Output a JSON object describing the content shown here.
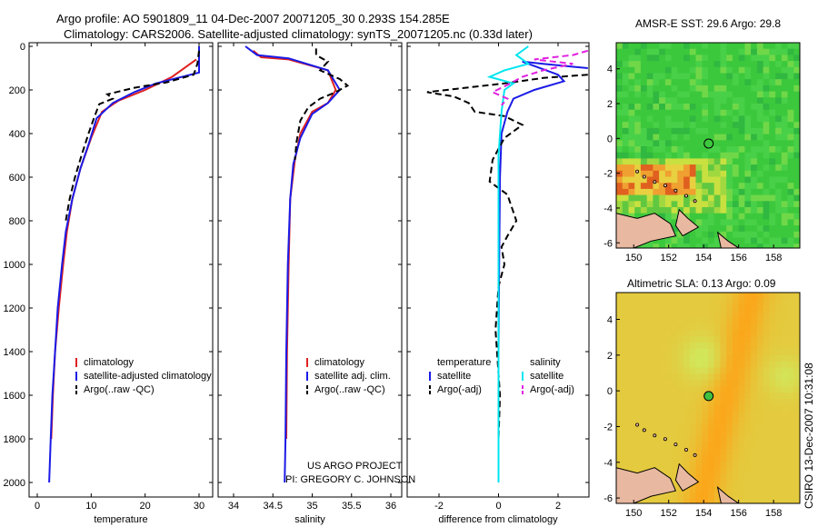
{
  "header": {
    "line1": "Argo profile: AO 5901809_11 04-Dec-2007 20071205_30 0.293S 154.285E",
    "line2": "Climatology: CARS2006. Satellite-adjusted climatology: synTS_20071205.nc (0.33d later)"
  },
  "colors": {
    "red": "#e02020",
    "blue": "#1a1ae6",
    "black": "#000000",
    "cyan": "#00e5f0",
    "magenta": "#e020e0",
    "land": "#e8b8a0",
    "grid_edge": "#000000"
  },
  "chart_data": [
    {
      "id": "temperature",
      "type": "line",
      "xlabel": "temperature",
      "ylabel": "",
      "xlim": [
        -2,
        31
      ],
      "ylim": [
        2050,
        0
      ],
      "xticks": [
        "0",
        "10",
        "20",
        "30"
      ],
      "xtick_values": [
        0,
        10,
        20,
        30
      ],
      "yticks": [
        "0",
        "200",
        "400",
        "600",
        "800",
        "1000",
        "1200",
        "1400",
        "1600",
        "1800",
        "2000"
      ],
      "ytick_values": [
        0,
        200,
        400,
        600,
        800,
        1000,
        1200,
        1400,
        1600,
        1800,
        2000
      ],
      "legend": [
        {
          "label": "climatology",
          "color": "red",
          "dash": false
        },
        {
          "label": "satellite-adjusted climatology",
          "color": "blue",
          "dash": false
        },
        {
          "label": "Argo(..raw -QC)",
          "color": "black",
          "dash": true
        }
      ],
      "series": [
        {
          "name": "climatology",
          "color": "red",
          "dash": false,
          "points": [
            [
              29.5,
              60
            ],
            [
              25,
              140
            ],
            [
              20,
              200
            ],
            [
              15,
              250
            ],
            [
              12,
              300
            ],
            [
              10,
              420
            ],
            [
              8,
              560
            ],
            [
              6.5,
              700
            ],
            [
              5.5,
              850
            ],
            [
              4.8,
              1000
            ],
            [
              4,
              1200
            ],
            [
              3.3,
              1400
            ],
            [
              2.9,
              1600
            ],
            [
              2.6,
              1800
            ]
          ]
        },
        {
          "name": "satellite-adjusted climatology",
          "color": "blue",
          "dash": false,
          "points": [
            [
              30,
              0
            ],
            [
              30,
              120
            ],
            [
              22,
              170
            ],
            [
              18,
              210
            ],
            [
              14,
              260
            ],
            [
              11,
              330
            ],
            [
              9.5,
              450
            ],
            [
              8,
              560
            ],
            [
              6.5,
              700
            ],
            [
              5.3,
              850
            ],
            [
              4.6,
              1000
            ],
            [
              3.8,
              1200
            ],
            [
              3.3,
              1400
            ],
            [
              2.8,
              1600
            ],
            [
              2.5,
              1800
            ],
            [
              2.2,
              2000
            ]
          ]
        },
        {
          "name": "Argo(..raw -QC)",
          "color": "black",
          "dash": true,
          "points": [
            [
              30,
              20
            ],
            [
              29.7,
              80
            ],
            [
              29,
              130
            ],
            [
              24,
              165
            ],
            [
              18,
              190
            ],
            [
              13,
              220
            ],
            [
              14,
              240
            ],
            [
              11.5,
              265
            ],
            [
              10.5,
              330
            ],
            [
              9.5,
              400
            ],
            [
              8.2,
              500
            ],
            [
              7,
              600
            ],
            [
              6,
              700
            ],
            [
              5.3,
              800
            ]
          ]
        }
      ]
    },
    {
      "id": "salinity",
      "type": "line",
      "xlabel": "salinity",
      "xlim": [
        33.85,
        36.1
      ],
      "ylim": [
        2050,
        0
      ],
      "xticks": [
        "34",
        "34.5",
        "35",
        "35.5",
        "36"
      ],
      "xtick_values": [
        34,
        34.5,
        35,
        35.5,
        36
      ],
      "legend": [
        {
          "label": "climatology",
          "color": "red",
          "dash": false
        },
        {
          "label": "satellite adj. clim.",
          "color": "blue",
          "dash": false
        },
        {
          "label": "Argo(..raw -QC)",
          "color": "black",
          "dash": true
        }
      ],
      "series": [
        {
          "name": "climatology",
          "color": "red",
          "dash": false,
          "points": [
            [
              34.25,
              20
            ],
            [
              34.35,
              50
            ],
            [
              34.7,
              60
            ],
            [
              35.2,
              110
            ],
            [
              35.3,
              200
            ],
            [
              35.2,
              260
            ],
            [
              35,
              300
            ],
            [
              34.85,
              400
            ],
            [
              34.78,
              520
            ],
            [
              34.72,
              700
            ],
            [
              34.7,
              1000
            ],
            [
              34.68,
              1400
            ],
            [
              34.67,
              1800
            ]
          ]
        },
        {
          "name": "satellite adj. clim.",
          "color": "blue",
          "dash": false,
          "points": [
            [
              34.15,
              0
            ],
            [
              34.3,
              40
            ],
            [
              34.7,
              55
            ],
            [
              35.2,
              110
            ],
            [
              35.35,
              200
            ],
            [
              35.2,
              260
            ],
            [
              35,
              310
            ],
            [
              34.85,
              420
            ],
            [
              34.76,
              540
            ],
            [
              34.72,
              700
            ],
            [
              34.69,
              1000
            ],
            [
              34.67,
              1400
            ],
            [
              34.66,
              1800
            ],
            [
              34.65,
              2000
            ]
          ]
        },
        {
          "name": "Argo(..raw -QC)",
          "color": "black",
          "dash": true,
          "points": [
            [
              35.05,
              10
            ],
            [
              35.05,
              40
            ],
            [
              35.2,
              70
            ],
            [
              35.1,
              110
            ],
            [
              35.35,
              150
            ],
            [
              35.45,
              180
            ],
            [
              35.3,
              210
            ],
            [
              35.1,
              240
            ],
            [
              34.95,
              280
            ],
            [
              34.85,
              340
            ],
            [
              34.8,
              440
            ],
            [
              34.78,
              520
            ]
          ]
        }
      ],
      "annotations": [
        "US ARGO PROJECT",
        "PI: GREGORY C. JOHNSON"
      ]
    },
    {
      "id": "difference",
      "type": "line",
      "xlabel": "difference from climatology",
      "xlim": [
        -3,
        3
      ],
      "ylim": [
        2050,
        0
      ],
      "xticks": [
        "-2",
        "0",
        "2"
      ],
      "xtick_values": [
        -2,
        0,
        2
      ],
      "legend_left_title": "temperature",
      "legend_right_title": "salinity",
      "legend": [
        {
          "label": "satellite",
          "color": "blue",
          "dash": false,
          "side": "left"
        },
        {
          "label": "Argo(-adj)",
          "color": "black",
          "dash": true,
          "side": "left"
        },
        {
          "label": "satellite",
          "color": "cyan",
          "dash": false,
          "side": "right"
        },
        {
          "label": "Argo(-adj)",
          "color": "magenta",
          "dash": true,
          "side": "right"
        }
      ],
      "series": [
        {
          "name": "temperature satellite",
          "color": "blue",
          "dash": false,
          "points": [
            [
              3,
              100
            ],
            [
              1.5,
              80
            ],
            [
              0.8,
              70
            ],
            [
              2,
              130
            ],
            [
              2.2,
              160
            ],
            [
              1.2,
              200
            ],
            [
              0.5,
              240
            ],
            [
              0.3,
              300
            ],
            [
              0.1,
              400
            ],
            [
              0.05,
              600
            ],
            [
              0.02,
              1000
            ],
            [
              0,
              1400
            ],
            [
              0,
              2000
            ]
          ]
        },
        {
          "name": "temperature Argo(-adj)",
          "color": "black",
          "dash": true,
          "points": [
            [
              3,
              130
            ],
            [
              1.5,
              145
            ],
            [
              0.2,
              170
            ],
            [
              -2.4,
              210
            ],
            [
              -1.5,
              230
            ],
            [
              -1,
              260
            ],
            [
              -0.8,
              300
            ],
            [
              0.2,
              320
            ],
            [
              0.8,
              360
            ],
            [
              0.2,
              420
            ],
            [
              -0.2,
              520
            ],
            [
              -0.3,
              620
            ],
            [
              0.3,
              680
            ],
            [
              0.6,
              800
            ],
            [
              0.3,
              870
            ],
            [
              0.1,
              920
            ],
            [
              0.2,
              1000
            ],
            [
              0,
              1100
            ],
            [
              -0.1,
              1300
            ],
            [
              0.05,
              1600
            ],
            [
              0,
              1800
            ]
          ]
        },
        {
          "name": "salinity satellite",
          "color": "cyan",
          "dash": false,
          "points": [
            [
              1,
              0
            ],
            [
              0.6,
              40
            ],
            [
              1,
              80
            ],
            [
              0.2,
              110
            ],
            [
              -0.3,
              140
            ],
            [
              0.5,
              170
            ],
            [
              0.2,
              200
            ],
            [
              0.1,
              300
            ],
            [
              0,
              500
            ],
            [
              0,
              1000
            ],
            [
              0,
              1500
            ],
            [
              0,
              2000
            ]
          ]
        },
        {
          "name": "salinity Argo(-adj)",
          "color": "magenta",
          "dash": true,
          "points": [
            [
              3,
              20
            ],
            [
              2.5,
              40
            ],
            [
              1.2,
              60
            ],
            [
              2.5,
              80
            ],
            [
              1.5,
              110
            ],
            [
              0.8,
              140
            ],
            [
              0.4,
              170
            ],
            [
              -0.2,
              210
            ],
            [
              0.3,
              240
            ],
            [
              0.1,
              270
            ]
          ]
        }
      ]
    },
    {
      "id": "sst_map",
      "type": "heatmap",
      "title": "AMSR-E SST: 29.6 Argo: 29.8",
      "xlim": [
        149,
        159.5
      ],
      "ylim": [
        -6.3,
        5.5
      ],
      "xticks": [
        "150",
        "152",
        "154",
        "156",
        "158"
      ],
      "xtick_values": [
        150,
        152,
        154,
        156,
        158
      ],
      "yticks": [
        "-6",
        "-4",
        "-2",
        "0",
        "2",
        "4"
      ],
      "ytick_values": [
        -6,
        -4,
        -2,
        0,
        2,
        4
      ],
      "marker": {
        "lon": 154.285,
        "lat": -0.293
      }
    },
    {
      "id": "sla_map",
      "type": "heatmap",
      "title": "Altimetric SLA: 0.13 Argo: 0.09",
      "xlim": [
        149,
        159.5
      ],
      "ylim": [
        -6.3,
        5.5
      ],
      "xticks": [
        "150",
        "152",
        "154",
        "156",
        "158"
      ],
      "xtick_values": [
        150,
        152,
        154,
        156,
        158
      ],
      "yticks": [
        "-6",
        "-4",
        "-2",
        "0",
        "2",
        "4"
      ],
      "ytick_values": [
        -6,
        -4,
        -2,
        0,
        2,
        4
      ],
      "marker": {
        "lon": 154.285,
        "lat": -0.293
      }
    }
  ],
  "footer": {
    "stamp": "CSIRO 13-Dec-2007 10:31:08"
  }
}
